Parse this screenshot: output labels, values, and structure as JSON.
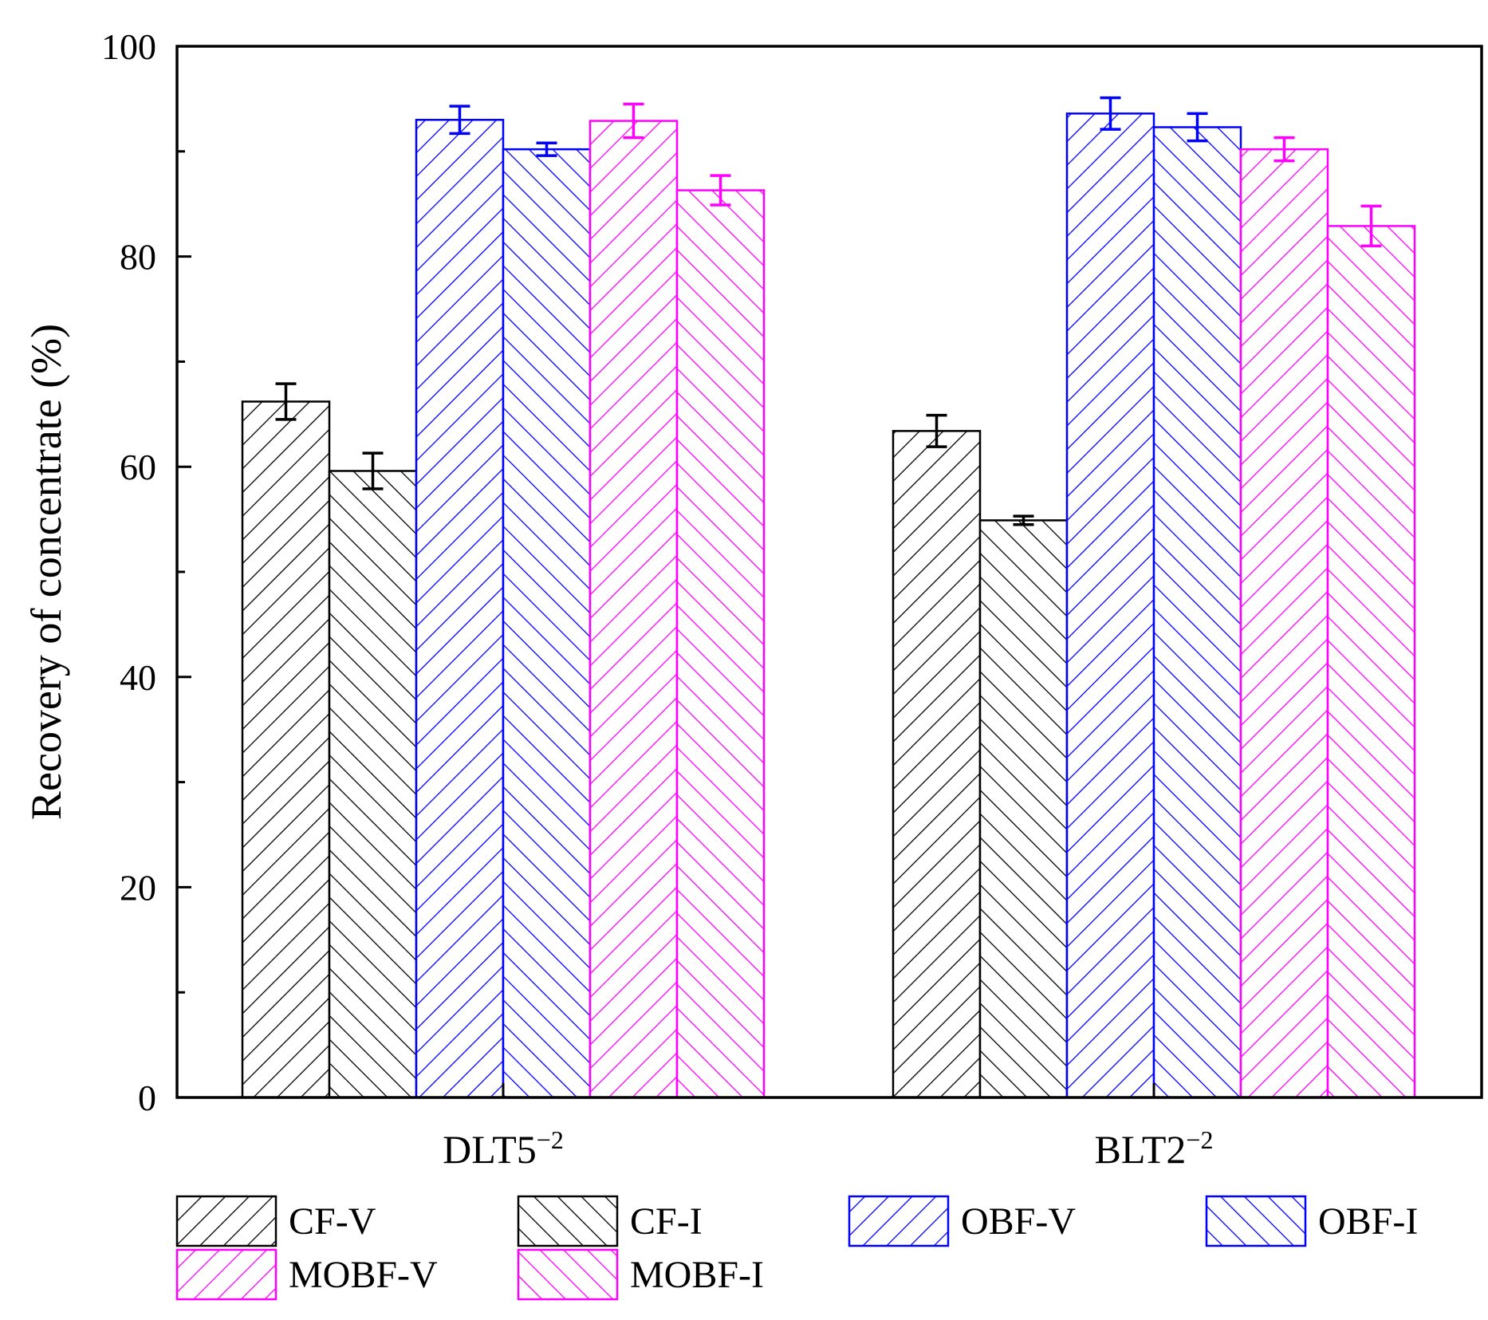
{
  "chart_data": {
    "type": "bar",
    "title": "",
    "xlabel": "",
    "ylabel": "Recovery of concentrate (%)",
    "ylim": [
      0,
      100
    ],
    "yticks": [
      0,
      20,
      40,
      60,
      80,
      100
    ],
    "grid": false,
    "legend_position": "bottom",
    "categories": [
      {
        "base": "DLT5",
        "sup": "−2"
      },
      {
        "base": "BLT2",
        "sup": "−2"
      }
    ],
    "series": [
      {
        "name": "CF-V",
        "color": "#000000",
        "hatch": "forward",
        "values": [
          66.2,
          63.4
        ],
        "errors": [
          1.7,
          1.5
        ]
      },
      {
        "name": "CF-I",
        "color": "#000000",
        "hatch": "backward",
        "values": [
          59.6,
          54.9
        ],
        "errors": [
          1.7,
          0.4
        ]
      },
      {
        "name": "OBF-V",
        "color": "#0000ff",
        "hatch": "forward",
        "values": [
          93.0,
          93.6
        ],
        "errors": [
          1.3,
          1.5
        ]
      },
      {
        "name": "OBF-I",
        "color": "#0000ff",
        "hatch": "backward",
        "values": [
          90.2,
          92.3
        ],
        "errors": [
          0.6,
          1.3
        ]
      },
      {
        "name": "MOBF-V",
        "color": "#ff00ff",
        "hatch": "forward",
        "values": [
          92.9,
          90.2
        ],
        "errors": [
          1.6,
          1.1
        ]
      },
      {
        "name": "MOBF-I",
        "color": "#ff00ff",
        "hatch": "backward",
        "values": [
          86.3,
          82.9
        ],
        "errors": [
          1.4,
          1.9
        ]
      }
    ]
  }
}
